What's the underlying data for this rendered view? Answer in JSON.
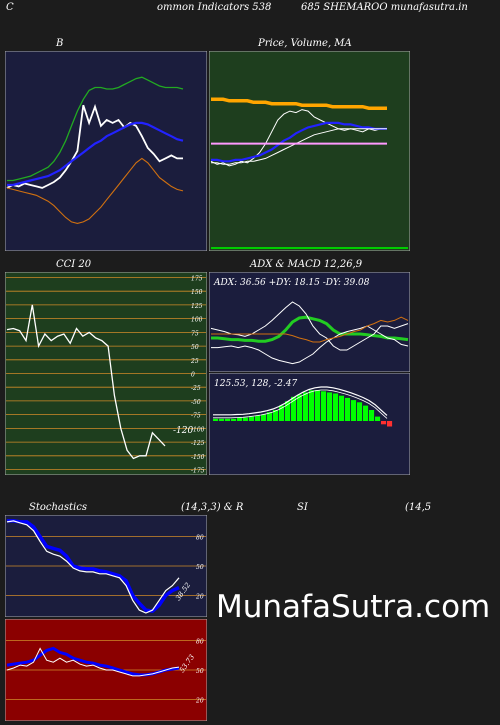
{
  "header": {
    "left": "C",
    "title": "ommon  Indicators 538",
    "symbol": "685 SHEMAROO munafasutra.in"
  },
  "watermark": "MunafaSutra.com",
  "colors": {
    "page_bg": "#1c1c1c",
    "navy_panel": "#1b1d3d",
    "green_panel": "#1e3e1e",
    "red_panel": "#8b0000",
    "grid_orange": "#d08a28"
  },
  "chart_data": [
    {
      "id": "bollinger",
      "type": "line",
      "title": "B",
      "series": [
        {
          "color": "#ffffff",
          "values": [
            40,
            42,
            41,
            43,
            42,
            41,
            40,
            42,
            44,
            47,
            52,
            58,
            65,
            96,
            84,
            95,
            82,
            86,
            84,
            86,
            81,
            84,
            82,
            75,
            67,
            63,
            58,
            60,
            62,
            60,
            60
          ]
        },
        {
          "color": "#2222ff",
          "values": [
            42,
            42,
            43,
            44,
            45,
            46,
            47,
            48,
            50,
            52,
            55,
            58,
            61,
            64,
            67,
            70,
            72,
            75,
            77,
            79,
            81,
            83,
            84,
            84,
            83,
            81,
            79,
            77,
            75,
            73,
            72
          ]
        },
        {
          "color": "#22aa22",
          "values": [
            45,
            45,
            46,
            47,
            48,
            50,
            52,
            54,
            58,
            64,
            72,
            82,
            92,
            100,
            106,
            108,
            108,
            107,
            107,
            108,
            110,
            112,
            114,
            115,
            113,
            111,
            109,
            108,
            108,
            108,
            107
          ]
        },
        {
          "color": "#d07010",
          "values": [
            40,
            39,
            38,
            37,
            36,
            35,
            33,
            31,
            28,
            24,
            20,
            17,
            16,
            17,
            19,
            23,
            27,
            32,
            37,
            42,
            47,
            52,
            57,
            60,
            57,
            52,
            47,
            44,
            41,
            39,
            38
          ]
        }
      ]
    },
    {
      "id": "price-ma",
      "type": "line",
      "title": "Price,  Volume,  MA",
      "series": [
        {
          "color": "#ffffff",
          "values": [
            58,
            56,
            57,
            55,
            56,
            58,
            57,
            60,
            64,
            70,
            78,
            86,
            90,
            92,
            91,
            93,
            92,
            88,
            86,
            84,
            82,
            80,
            79,
            80,
            79,
            78,
            80,
            79,
            80,
            80
          ]
        },
        {
          "color": "#2222ff",
          "values": [
            59,
            59,
            58,
            58,
            59,
            59,
            60,
            61,
            62,
            64,
            66,
            69,
            72,
            74,
            77,
            79,
            81,
            82,
            83,
            84,
            84,
            84,
            83,
            83,
            82,
            81,
            81,
            80,
            80,
            80
          ]
        },
        {
          "color": "#ffffff",
          "values": [
            57,
            57,
            56,
            56,
            57,
            57,
            58,
            58,
            59,
            60,
            62,
            64,
            66,
            68,
            70,
            72,
            74,
            76,
            77,
            78,
            79,
            80,
            80,
            80,
            80,
            80,
            80,
            80,
            80,
            80
          ]
        },
        {
          "color": "#ff99ff",
          "values": [
            70,
            70,
            70,
            70,
            70,
            70,
            70,
            70,
            70,
            70,
            70,
            70,
            70,
            70,
            70,
            70,
            70,
            70,
            70,
            70,
            70,
            70,
            70,
            70,
            70,
            70,
            70,
            70,
            70,
            70
          ]
        },
        {
          "color": "#ffa500",
          "values": [
            100,
            100,
            100,
            99,
            99,
            99,
            99,
            98,
            98,
            98,
            97,
            97,
            97,
            97,
            97,
            96,
            96,
            96,
            96,
            96,
            95,
            95,
            95,
            95,
            95,
            95,
            94,
            94,
            94,
            94
          ]
        }
      ]
    },
    {
      "id": "cci",
      "type": "line",
      "title": "CCI 20",
      "yticks": [
        175,
        150,
        125,
        100,
        75,
        50,
        25,
        0,
        -25,
        -50,
        -75,
        -100,
        -125,
        -150,
        -175
      ],
      "ylim": [
        -185,
        185
      ],
      "value_label": "-120",
      "values": [
        80,
        82,
        78,
        60,
        125,
        50,
        72,
        60,
        68,
        72,
        55,
        82,
        68,
        75,
        65,
        60,
        50,
        -40,
        -100,
        -140,
        -155,
        -150,
        -150,
        -108,
        -120,
        -132
      ]
    },
    {
      "id": "adx",
      "type": "line",
      "title": "ADX  & MACD 12,26,9",
      "label": "ADX: 36.56  +DY: 18.15 -DY: 39.08",
      "series": [
        {
          "color": "#22cc22",
          "values": [
            40,
            40,
            39,
            38,
            38,
            37,
            37,
            36,
            36,
            38,
            42,
            50,
            60,
            65,
            66,
            64,
            62,
            58,
            50,
            45,
            45,
            45,
            45,
            44,
            43,
            42,
            40,
            40,
            39,
            38
          ]
        },
        {
          "color": "#ffffff",
          "values": [
            52,
            50,
            48,
            45,
            44,
            42,
            45,
            50,
            55,
            62,
            70,
            78,
            85,
            80,
            70,
            55,
            45,
            40,
            30,
            25,
            25,
            30,
            35,
            40,
            45,
            55,
            55,
            52,
            55,
            58
          ]
        },
        {
          "color": "#ffffff",
          "values": [
            28,
            28,
            29,
            30,
            28,
            30,
            28,
            25,
            20,
            15,
            12,
            10,
            8,
            10,
            15,
            20,
            28,
            35,
            40,
            45,
            48,
            50,
            52,
            55,
            50,
            45,
            40,
            38,
            32,
            30
          ]
        },
        {
          "color": "#d07010",
          "values": [
            45,
            45,
            45,
            45,
            45,
            45,
            45,
            45,
            45,
            45,
            45,
            45,
            43,
            40,
            38,
            35,
            35,
            38,
            40,
            42,
            45,
            48,
            50,
            55,
            58,
            62,
            60,
            62,
            66,
            62
          ]
        }
      ]
    },
    {
      "id": "macd",
      "type": "bar",
      "label": "125.53,  128,  -2.47",
      "values": [
        2,
        2,
        2,
        2,
        3,
        3,
        4,
        5,
        6,
        8,
        10,
        14,
        18,
        22,
        24,
        26,
        28,
        28,
        27,
        26,
        25,
        23,
        21,
        19,
        17,
        14,
        10,
        4,
        -3,
        -5
      ]
    },
    {
      "id": "stochastics",
      "type": "line",
      "title_left": "Stochastics",
      "title_right": "(14,3,3) & R",
      "yticks": [
        80,
        50,
        20
      ],
      "ylim": [
        0,
        100
      ],
      "value_label": "38.52",
      "series": [
        {
          "color": "#0000ff",
          "values": [
            96,
            96,
            95,
            95,
            90,
            80,
            70,
            68,
            66,
            60,
            50,
            48,
            47,
            47,
            45,
            44,
            42,
            40,
            35,
            20,
            12,
            5,
            4,
            10,
            20,
            25,
            28
          ]
        },
        {
          "color": "#ffffff",
          "values": [
            95,
            96,
            94,
            92,
            86,
            75,
            65,
            62,
            60,
            55,
            48,
            45,
            44,
            44,
            42,
            42,
            40,
            38,
            30,
            15,
            5,
            2,
            5,
            15,
            25,
            30,
            38
          ]
        }
      ]
    },
    {
      "id": "rsi-panel",
      "type": "line",
      "title": "SI",
      "title_right": "(14,5",
      "yticks": [
        80,
        50,
        20
      ],
      "ylim": [
        0,
        100
      ],
      "value_label": "53.73",
      "series": [
        {
          "color": "#0000ff",
          "values": [
            55,
            56,
            57,
            58,
            60,
            65,
            70,
            72,
            68,
            66,
            62,
            60,
            58,
            57,
            55,
            54,
            52,
            50,
            48,
            46,
            45,
            45,
            46,
            48,
            50,
            51,
            52
          ]
        },
        {
          "color": "#ffffff",
          "values": [
            50,
            52,
            55,
            54,
            58,
            72,
            60,
            58,
            62,
            58,
            60,
            56,
            54,
            55,
            52,
            50,
            50,
            48,
            46,
            44,
            44,
            45,
            46,
            48,
            50,
            52,
            53
          ]
        }
      ]
    }
  ]
}
